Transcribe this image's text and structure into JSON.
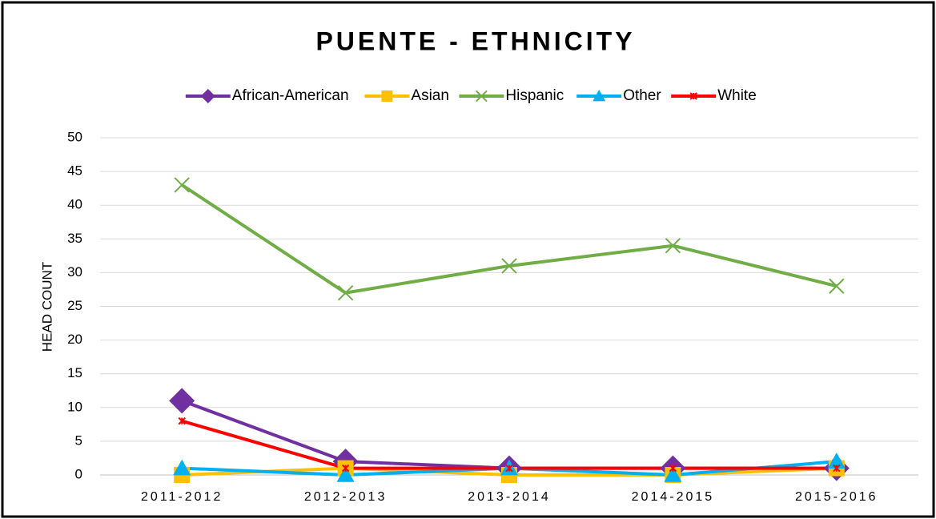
{
  "chart_data": {
    "type": "line",
    "title": "PUENTE - ETHNICITY",
    "y_label": "HEAD COUNT",
    "categories": [
      "2011-2012",
      "2012-2013",
      "2013-2014",
      "2014-2015",
      "2015-2016"
    ],
    "series": [
      {
        "name": "African-American",
        "color": "#7030a0",
        "marker": "diamond",
        "values": [
          11,
          2,
          1,
          1,
          1
        ]
      },
      {
        "name": "Asian",
        "color": "#ffc000",
        "marker": "square",
        "values": [
          0,
          1,
          0,
          0,
          1
        ]
      },
      {
        "name": "Hispanic",
        "color": "#70ad47",
        "marker": "x",
        "values": [
          43,
          27,
          31,
          34,
          28
        ]
      },
      {
        "name": "Other",
        "color": "#00b0f0",
        "marker": "triangle",
        "values": [
          1,
          0,
          1,
          0,
          2
        ]
      },
      {
        "name": "White",
        "color": "#ff0000",
        "marker": "star",
        "values": [
          8,
          1,
          1,
          1,
          1
        ]
      }
    ],
    "ylim": [
      0,
      50
    ],
    "yticks": [
      0,
      5,
      10,
      15,
      20,
      25,
      30,
      35,
      40,
      45,
      50
    ],
    "grid": true,
    "legend": "top"
  }
}
